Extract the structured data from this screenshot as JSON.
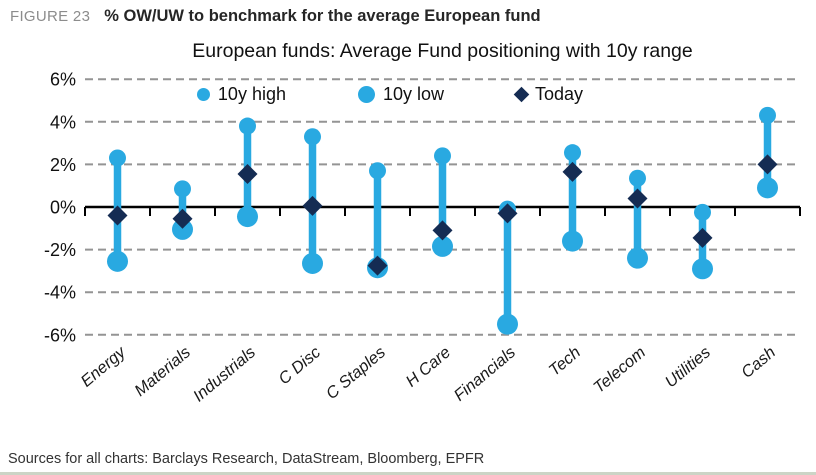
{
  "header": {
    "figure_label": "FIGURE 23",
    "title": "% OW/UW to benchmark for the average European fund"
  },
  "footer": {
    "sources": "Sources for all charts: Barclays Research, DataStream, Bloomberg, EPFR"
  },
  "colors": {
    "accent_blue": "#29a9e1",
    "navy": "#152c53",
    "grid": "#949494",
    "axis": "#000000",
    "figure_label_gray": "#8c8c8c"
  },
  "chart_data": {
    "type": "scatter",
    "subtype": "dot-range (10y high/low bars with today diamond)",
    "title": "European funds: Average Fund positioning with 10y range",
    "xlabel": "",
    "ylabel": "% OW/UW",
    "ylim": [
      -6.8,
      6.8
    ],
    "yticks": [
      6,
      4,
      2,
      0,
      -2,
      -4,
      -6
    ],
    "ytick_labels": [
      "6%",
      "4%",
      "2%",
      "0%",
      "-2%",
      "-4%",
      "-6%"
    ],
    "grid": "horizontal dashed",
    "legend_position": "top",
    "legend": [
      {
        "label": "10y high",
        "marker": "circle-small",
        "color": "#29a9e1"
      },
      {
        "label": "10y low",
        "marker": "circle-large",
        "color": "#29a9e1"
      },
      {
        "label": "Today",
        "marker": "diamond",
        "color": "#152c53"
      }
    ],
    "categories": [
      "Energy",
      "Materials",
      "Industrials",
      "C Disc",
      "C Staples",
      "H Care",
      "Financials",
      "Tech",
      "Telecom",
      "Utilities",
      "Cash"
    ],
    "series": [
      {
        "name": "10y high",
        "values": [
          2.3,
          0.85,
          3.8,
          3.3,
          1.7,
          2.4,
          -0.1,
          2.55,
          1.35,
          -0.25,
          4.3
        ]
      },
      {
        "name": "10y low",
        "values": [
          -2.55,
          -1.05,
          -0.45,
          -2.65,
          -2.85,
          -1.85,
          -5.5,
          -1.6,
          -2.4,
          -2.9,
          0.9
        ]
      },
      {
        "name": "Today",
        "values": [
          -0.4,
          -0.55,
          1.55,
          0.05,
          -2.75,
          -1.1,
          -0.3,
          1.65,
          0.4,
          -1.45,
          2.0
        ]
      }
    ]
  }
}
